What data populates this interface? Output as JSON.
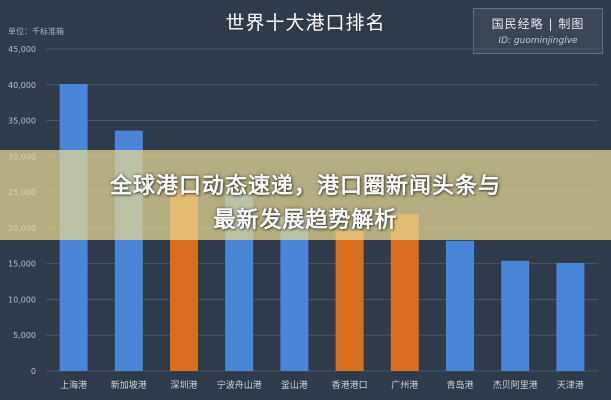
{
  "chart_data": {
    "type": "bar",
    "title": "世界十大港口排名",
    "unit_label": "单位：千标准箱",
    "categories": [
      "上海港",
      "新加坡港",
      "深圳港",
      "宁波舟山港",
      "釜山港",
      "香港港口",
      "广州港",
      "青岛港",
      "杰贝阿里港",
      "天津港"
    ],
    "values": [
      40100,
      33600,
      25500,
      24600,
      21600,
      19600,
      21900,
      18200,
      15400,
      15100
    ],
    "bar_colors": [
      "#4a86d8",
      "#4a86d8",
      "#d86f1e",
      "#4a86d8",
      "#4a86d8",
      "#d86f1e",
      "#d86f1e",
      "#4a86d8",
      "#4a86d8",
      "#4a86d8"
    ],
    "ylim": [
      0,
      45000
    ],
    "yticks": [
      "0",
      "5,000",
      "10,000",
      "15,000",
      "20,000",
      "25,000",
      "30,000",
      "35,000",
      "40,000",
      "45,000"
    ],
    "xlabel": "",
    "ylabel": "",
    "grid": true
  },
  "badge": {
    "name": "国民经略 | 制图",
    "id": "ID: guominjinglve"
  },
  "banner": {
    "line1": "全球港口动态速递，港口圈新闻头条与",
    "line2": "最新发展趋势解析"
  },
  "colors": {
    "background": "#2f3a4a",
    "blue_bar": "#4a86d8",
    "orange_bar": "#d86f1e",
    "banner": "#e8da96"
  }
}
